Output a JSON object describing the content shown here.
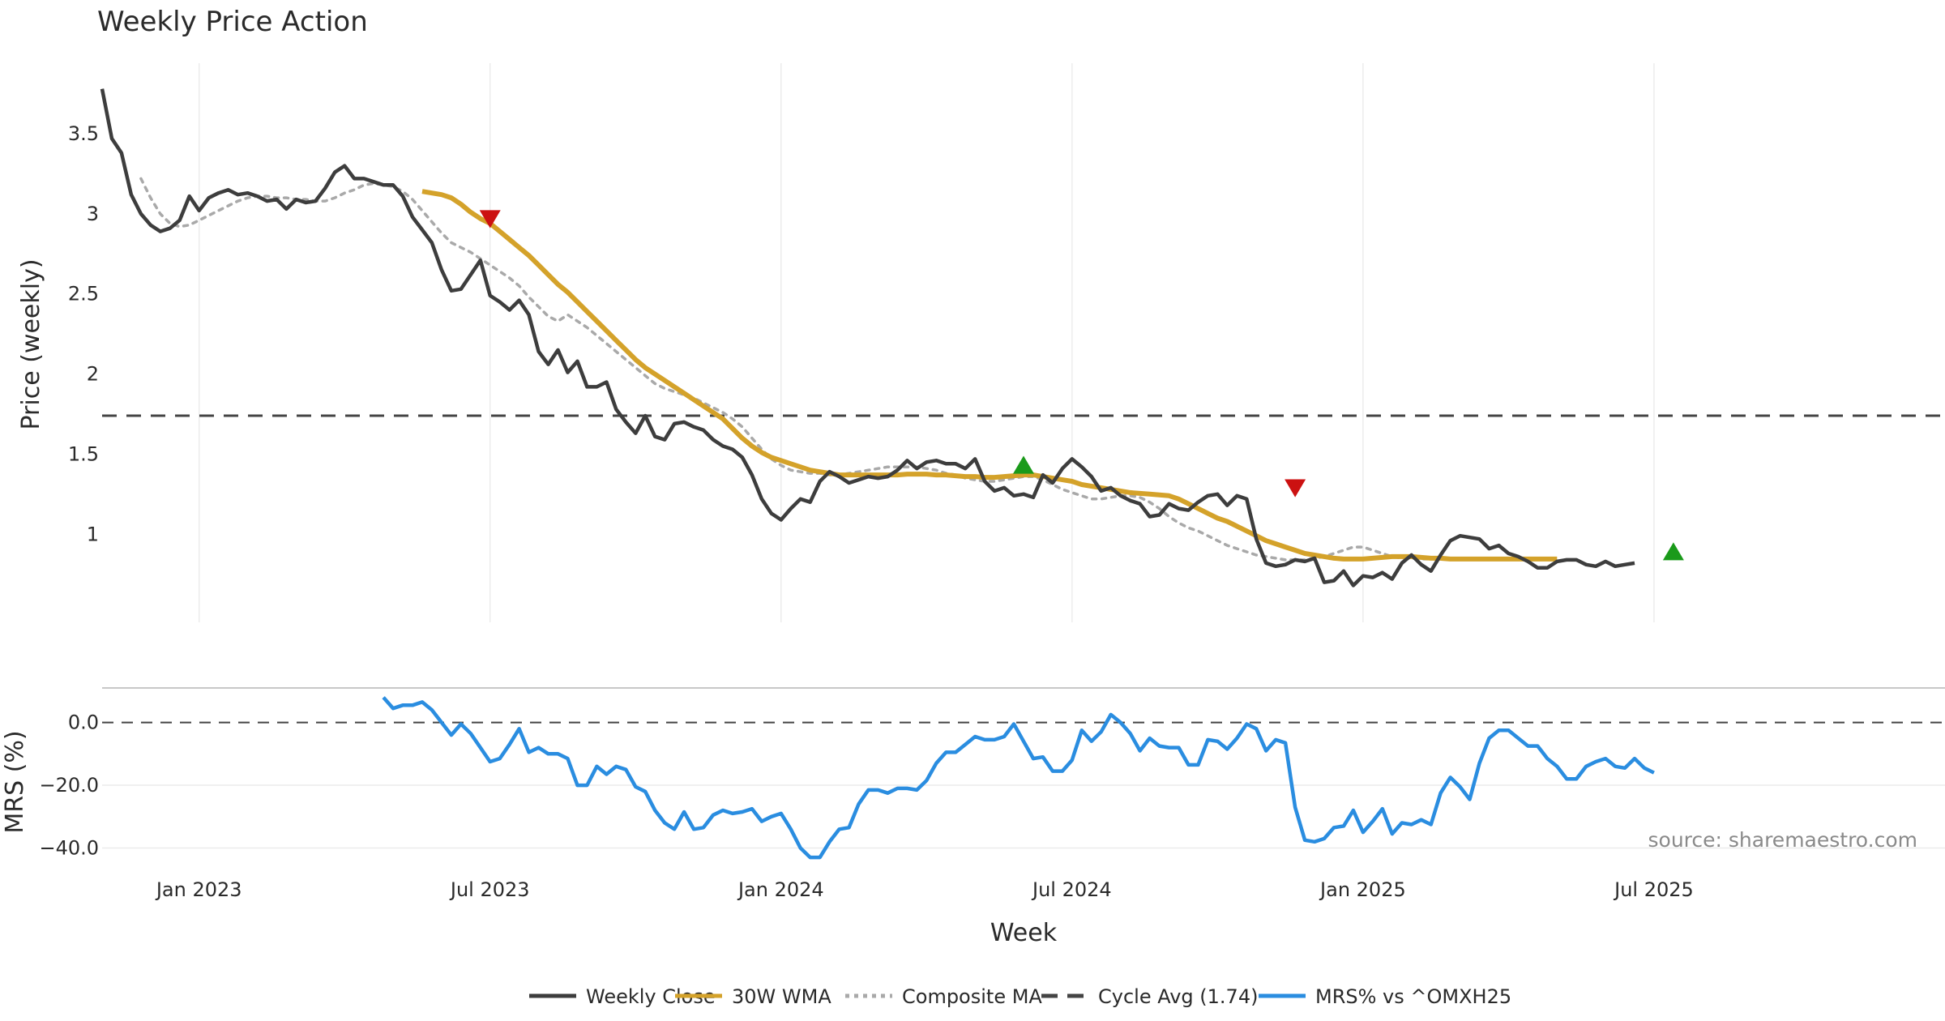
{
  "chart_data": [
    {
      "type": "line",
      "panel": "price",
      "title": "Weekly Price Action",
      "ylabel": "Price (weekly)",
      "xlabel": "Week",
      "ylim": [
        0.45,
        3.92
      ],
      "yticks": [
        1,
        1.5,
        2,
        2.5,
        3,
        3.5
      ],
      "ytick_labels": [
        "1",
        "1.5",
        "2",
        "2.5",
        "3",
        "3.5"
      ],
      "xrange": [
        0,
        190
      ],
      "xticks": [
        {
          "x": 10,
          "label": "Jan 2023"
        },
        {
          "x": 40,
          "label": "Jul 2023"
        },
        {
          "x": 70,
          "label": "Jan 2024"
        },
        {
          "x": 100,
          "label": "Jul 2024"
        },
        {
          "x": 130,
          "label": "Jan 2025"
        },
        {
          "x": 160,
          "label": "Jul 2025"
        }
      ],
      "grid": true,
      "cycle_avg": 1.74,
      "series": [
        {
          "name": "Weekly Close",
          "color": "#3d3d3d",
          "style": "solid",
          "x_start": 0,
          "values": [
            3.78,
            3.47,
            3.38,
            3.12,
            3.0,
            2.93,
            2.89,
            2.91,
            2.96,
            3.11,
            3.02,
            3.1,
            3.13,
            3.15,
            3.12,
            3.13,
            3.11,
            3.08,
            3.09,
            3.03,
            3.09,
            3.07,
            3.08,
            3.16,
            3.26,
            3.3,
            3.22,
            3.22,
            3.2,
            3.18,
            3.18,
            3.11,
            2.98,
            2.9,
            2.82,
            2.65,
            2.52,
            2.53,
            2.62,
            2.71,
            2.49,
            2.45,
            2.4,
            2.46,
            2.37,
            2.14,
            2.06,
            2.15,
            2.01,
            2.08,
            1.92,
            1.92,
            1.95,
            1.78,
            1.7,
            1.63,
            1.74,
            1.61,
            1.59,
            1.69,
            1.7,
            1.67,
            1.65,
            1.59,
            1.55,
            1.53,
            1.48,
            1.37,
            1.22,
            1.13,
            1.09,
            1.16,
            1.22,
            1.2,
            1.33,
            1.39,
            1.36,
            1.32,
            1.34,
            1.36,
            1.35,
            1.36,
            1.4,
            1.46,
            1.41,
            1.45,
            1.46,
            1.44,
            1.44,
            1.41,
            1.47,
            1.33,
            1.27,
            1.29,
            1.24,
            1.25,
            1.23,
            1.37,
            1.32,
            1.41,
            1.47,
            1.42,
            1.36,
            1.27,
            1.29,
            1.24,
            1.21,
            1.19,
            1.11,
            1.12,
            1.19,
            1.16,
            1.15,
            1.2,
            1.24,
            1.25,
            1.18,
            1.24,
            1.22,
            0.97,
            0.82,
            0.8,
            0.81,
            0.84,
            0.83,
            0.85,
            0.7,
            0.71,
            0.77,
            0.68,
            0.74,
            0.73,
            0.76,
            0.72,
            0.82,
            0.87,
            0.81,
            0.77,
            0.87,
            0.96,
            0.99,
            0.98,
            0.97,
            0.91,
            0.93,
            0.88,
            0.86,
            0.83,
            0.79,
            0.79,
            0.83,
            0.84,
            0.84,
            0.81,
            0.8,
            0.83,
            0.8,
            0.81,
            0.82
          ]
        },
        {
          "name": "30W WMA",
          "color": "#d4a22a",
          "style": "solid",
          "x_start": 33,
          "values": [
            3.14,
            3.13,
            3.12,
            3.1,
            3.06,
            3.01,
            2.97,
            2.94,
            2.89,
            2.84,
            2.79,
            2.74,
            2.68,
            2.62,
            2.56,
            2.51,
            2.45,
            2.39,
            2.33,
            2.27,
            2.21,
            2.15,
            2.09,
            2.04,
            2.0,
            1.96,
            1.92,
            1.88,
            1.84,
            1.8,
            1.76,
            1.72,
            1.66,
            1.6,
            1.55,
            1.51,
            1.48,
            1.46,
            1.44,
            1.42,
            1.4,
            1.39,
            1.38,
            1.37,
            1.37,
            1.37,
            1.37,
            1.37,
            1.37,
            1.37,
            1.375,
            1.375,
            1.375,
            1.37,
            1.37,
            1.365,
            1.36,
            1.36,
            1.355,
            1.355,
            1.36,
            1.365,
            1.37,
            1.37,
            1.36,
            1.35,
            1.34,
            1.33,
            1.31,
            1.3,
            1.29,
            1.28,
            1.27,
            1.26,
            1.255,
            1.25,
            1.245,
            1.24,
            1.22,
            1.19,
            1.16,
            1.13,
            1.1,
            1.08,
            1.05,
            1.02,
            0.99,
            0.96,
            0.94,
            0.92,
            0.9,
            0.88,
            0.87,
            0.86,
            0.85,
            0.845,
            0.845,
            0.845,
            0.85,
            0.855,
            0.86,
            0.86,
            0.86,
            0.855,
            0.85,
            0.85,
            0.845,
            0.845,
            0.845,
            0.845,
            0.845,
            0.845,
            0.845,
            0.845,
            0.845,
            0.845,
            0.845,
            0.845
          ]
        },
        {
          "name": "Composite MA",
          "color": "#a9a9a9",
          "style": "dotted",
          "x_start": 4,
          "values": [
            3.22,
            3.1,
            3.0,
            2.94,
            2.92,
            2.93,
            2.96,
            2.99,
            3.02,
            3.05,
            3.08,
            3.1,
            3.11,
            3.11,
            3.1,
            3.1,
            3.09,
            3.09,
            3.08,
            3.08,
            3.1,
            3.13,
            3.15,
            3.18,
            3.19,
            3.18,
            3.17,
            3.14,
            3.09,
            3.02,
            2.95,
            2.88,
            2.82,
            2.79,
            2.76,
            2.72,
            2.68,
            2.64,
            2.6,
            2.55,
            2.48,
            2.42,
            2.36,
            2.33,
            2.37,
            2.33,
            2.29,
            2.24,
            2.19,
            2.14,
            2.09,
            2.04,
            1.99,
            1.94,
            1.91,
            1.89,
            1.87,
            1.85,
            1.82,
            1.79,
            1.76,
            1.72,
            1.67,
            1.6,
            1.53,
            1.47,
            1.43,
            1.4,
            1.39,
            1.38,
            1.38,
            1.37,
            1.37,
            1.38,
            1.39,
            1.4,
            1.41,
            1.42,
            1.42,
            1.42,
            1.42,
            1.41,
            1.4,
            1.38,
            1.37,
            1.35,
            1.34,
            1.33,
            1.33,
            1.34,
            1.35,
            1.36,
            1.36,
            1.34,
            1.31,
            1.28,
            1.26,
            1.24,
            1.22,
            1.22,
            1.23,
            1.24,
            1.24,
            1.23,
            1.2,
            1.16,
            1.11,
            1.07,
            1.04,
            1.02,
            0.99,
            0.96,
            0.93,
            0.91,
            0.89,
            0.87,
            0.86,
            0.85,
            0.84,
            0.84,
            0.84,
            0.85,
            0.86,
            0.88,
            0.9,
            0.92,
            0.92,
            0.9,
            0.88,
            0.86,
            0.85,
            0.85,
            0.845,
            0.845,
            0.845,
            0.845,
            0.845,
            0.845,
            0.845,
            0.845,
            0.845,
            0.845,
            0.845
          ]
        },
        {
          "name": "Cycle Avg (1.74)",
          "color": "#444444",
          "style": "dashed",
          "value": 1.74
        }
      ],
      "markers": [
        {
          "type": "sell",
          "x": 40,
          "y": 2.97,
          "color": "#cc1111"
        },
        {
          "type": "buy",
          "x": 95,
          "y": 1.43,
          "color": "#1a9a1a"
        },
        {
          "type": "sell",
          "x": 123,
          "y": 1.29,
          "color": "#cc1111"
        },
        {
          "type": "buy",
          "x": 162,
          "y": 0.89,
          "color": "#1a9a1a"
        }
      ]
    },
    {
      "type": "line",
      "panel": "mrs",
      "ylabel": "MRS (%)",
      "ylim": [
        -44,
        11
      ],
      "yticks": [
        0,
        -20,
        -40
      ],
      "ytick_labels": [
        "0.0",
        "−20.0",
        "−40.0"
      ],
      "grid": true,
      "zero_line": 0,
      "series": [
        {
          "name": "MRS% vs ^OMXH25",
          "color": "#2a8de0",
          "style": "solid",
          "x_start": 29,
          "values": [
            8,
            4.5,
            5.5,
            5.5,
            6.5,
            4,
            0,
            -4,
            -0.5,
            -3.5,
            -8,
            -12.5,
            -11.5,
            -7,
            -2,
            -9.5,
            -8,
            -10,
            -10,
            -11.5,
            -20,
            -20,
            -14,
            -16.5,
            -14,
            -15,
            -20.5,
            -22,
            -28,
            -32,
            -34,
            -28.5,
            -34,
            -33.5,
            -29.5,
            -28,
            -29,
            -28.5,
            -27.5,
            -31.5,
            -30,
            -29,
            -34,
            -40,
            -43,
            -43,
            -38,
            -34,
            -33.5,
            -26,
            -21.5,
            -21.5,
            -22.5,
            -21,
            -21,
            -21.5,
            -18.5,
            -13,
            -9.5,
            -9.5,
            -7,
            -4.5,
            -5.5,
            -5.5,
            -4.5,
            -0.5,
            -6,
            -11.5,
            -11,
            -15.5,
            -15.5,
            -12,
            -2.5,
            -6,
            -3,
            2.5,
            0,
            -3.5,
            -9,
            -5,
            -7.5,
            -8,
            -8,
            -13.5,
            -13.5,
            -5.5,
            -6,
            -8.5,
            -5,
            -0.5,
            -2,
            -9,
            -5.5,
            -6.5,
            -27,
            -37.5,
            -38,
            -37,
            -33.5,
            -33,
            -28,
            -35,
            -31.5,
            -27.5,
            -35.5,
            -32,
            -32.5,
            -31,
            -32.5,
            -22.5,
            -17.5,
            -20.5,
            -24.5,
            -13,
            -5,
            -2.5,
            -2.5,
            -5,
            -7.5,
            -7.5,
            -11.5,
            -14,
            -18,
            -18,
            -14,
            -12.5,
            -11.5,
            -14,
            -14.5,
            -11.5,
            -14.5,
            -16
          ]
        }
      ]
    }
  ],
  "legend": [
    {
      "label": "Weekly Close",
      "color": "#3d3d3d",
      "style": "solid"
    },
    {
      "label": "30W WMA",
      "color": "#d4a22a",
      "style": "solid"
    },
    {
      "label": "Composite MA",
      "color": "#a9a9a9",
      "style": "dotted"
    },
    {
      "label": "Cycle Avg (1.74)",
      "color": "#444444",
      "style": "dashed"
    },
    {
      "label": "MRS% vs ^OMXH25",
      "color": "#2a8de0",
      "style": "solid"
    }
  ],
  "source": "source: sharemaestro.com"
}
